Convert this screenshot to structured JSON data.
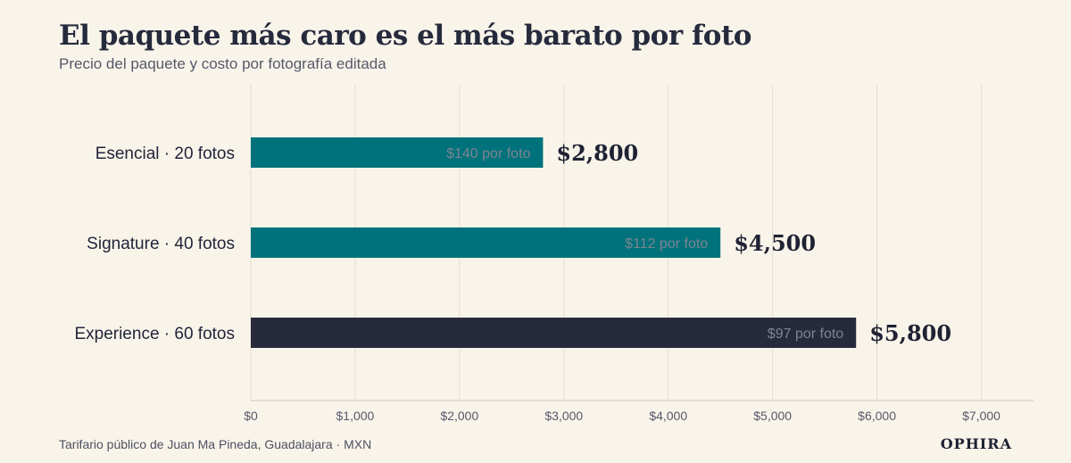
{
  "title": "El paquete más caro es el más barato por foto",
  "subtitle": "Precio del paquete y costo por fotografía editada",
  "footer": {
    "source": "Tarifario público de Juan Ma Pineda, Guadalajara · MXN",
    "brand": "OPHIRA"
  },
  "colors": {
    "background": "#f9f4ea",
    "teal": "#00727b",
    "navy": "#272a3c",
    "grid": "#e4ded0"
  },
  "chart_data": {
    "type": "bar",
    "orientation": "horizontal",
    "categories": [
      "Esencial · 20 fotos",
      "Signature · 40 fotos",
      "Experience · 60 fotos"
    ],
    "values": [
      2800,
      4500,
      5800
    ],
    "value_labels": [
      "$2,800",
      "$4,500",
      "$5,800"
    ],
    "inner_labels": [
      "$140 por foto",
      "$112 por foto",
      "$97 por foto"
    ],
    "bar_colors": [
      "#00727b",
      "#00727b",
      "#272a3c"
    ],
    "xlim": [
      0,
      7500
    ],
    "x_ticks": [
      0,
      1000,
      2000,
      3000,
      4000,
      5000,
      6000,
      7000
    ],
    "x_tick_labels": [
      "$0",
      "$1,000",
      "$2,000",
      "$3,000",
      "$4,000",
      "$5,000",
      "$6,000",
      "$7,000"
    ],
    "grid": true,
    "xlabel": "",
    "ylabel": ""
  }
}
